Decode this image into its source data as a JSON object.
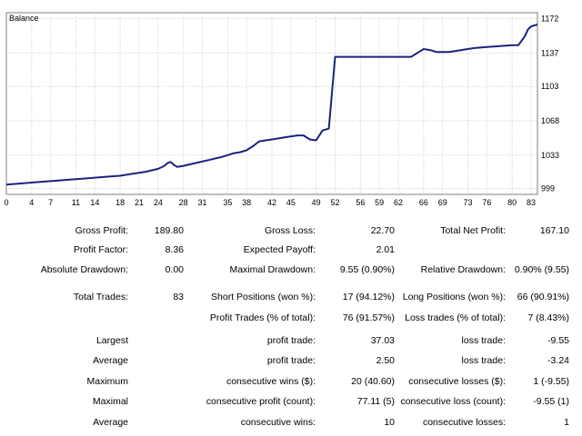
{
  "chart_data": {
    "type": "line",
    "title": "Balance",
    "x_ticks": [
      "0",
      "4",
      "7",
      "11",
      "14",
      "18",
      "21",
      "24",
      "28",
      "31",
      "35",
      "38",
      "42",
      "45",
      "49",
      "52",
      "56",
      "59",
      "62",
      "66",
      "69",
      "73",
      "76",
      "80",
      "83"
    ],
    "y_ticks": [
      "1172",
      "1137",
      "1103",
      "1068",
      "1033",
      "999"
    ],
    "xlim": [
      0,
      84
    ],
    "ylim": [
      993,
      1178
    ],
    "grid": true,
    "series": [
      {
        "color": "#1a237e",
        "x": [
          0,
          2,
          4,
          6,
          8,
          10,
          12,
          14,
          16,
          18,
          20,
          21,
          22,
          24,
          25,
          25.5,
          26,
          26.5,
          27,
          28,
          30,
          32,
          34,
          35,
          36,
          37,
          38,
          39,
          40,
          42,
          44,
          46,
          47,
          48,
          49,
          50,
          51,
          52,
          54,
          56,
          58,
          60,
          62,
          63,
          64,
          65,
          66,
          67,
          68,
          70,
          72,
          74,
          76,
          78,
          80,
          81,
          82,
          82.5,
          83,
          84
        ],
        "y": [
          1003,
          1004,
          1005,
          1006,
          1007,
          1008,
          1009,
          1010,
          1011,
          1012,
          1014,
          1015,
          1016,
          1019,
          1022,
          1025,
          1026,
          1023,
          1021,
          1022,
          1025,
          1028,
          1031,
          1033,
          1035,
          1036,
          1038,
          1042,
          1047,
          1049,
          1051,
          1053,
          1053,
          1049,
          1048,
          1058,
          1060,
          1133,
          1133,
          1133,
          1133,
          1133,
          1133,
          1133,
          1133,
          1137,
          1141,
          1140,
          1138,
          1138,
          1140,
          1142,
          1143,
          1144,
          1145,
          1145,
          1154,
          1161,
          1164,
          1166
        ]
      }
    ]
  },
  "stats": {
    "gross_profit": {
      "label": "Gross Profit:",
      "value": "189.80"
    },
    "gross_loss": {
      "label": "Gross Loss:",
      "value": "22.70"
    },
    "total_net_profit": {
      "label": "Total Net Profit:",
      "value": "167.10"
    },
    "profit_factor": {
      "label": "Profit Factor:",
      "value": "8.36"
    },
    "expected_payoff": {
      "label": "Expected Payoff:",
      "value": "2.01"
    },
    "absolute_drawdown": {
      "label": "Absolute Drawdown:",
      "value": "0.00"
    },
    "maximal_drawdown": {
      "label": "Maximal Drawdown:",
      "value": "9.55 (0.90%)"
    },
    "relative_drawdown": {
      "label": "Relative Drawdown:",
      "value": "0.90% (9.55)"
    },
    "total_trades": {
      "label": "Total Trades:",
      "value": "83"
    },
    "short_positions": {
      "label": "Short Positions (won %):",
      "value": "17 (94.12%)"
    },
    "long_positions": {
      "label": "Long Positions (won %):",
      "value": "66 (90.91%)"
    },
    "profit_trades": {
      "label": "Profit Trades (% of total):",
      "value": "76 (91.57%)"
    },
    "loss_trades": {
      "label": "Loss trades (% of total):",
      "value": "7 (8.43%)"
    },
    "largest": {
      "label": "Largest",
      "profit_label": "profit trade:",
      "profit_value": "37.03",
      "loss_label": "loss trade:",
      "loss_value": "-9.55"
    },
    "average": {
      "label": "Average",
      "profit_label": "profit trade:",
      "profit_value": "2.50",
      "loss_label": "loss trade:",
      "loss_value": "-3.24"
    },
    "maximum": {
      "label": "Maximum",
      "profit_label": "consecutive wins ($):",
      "profit_value": "20 (40.60)",
      "loss_label": "consecutive losses ($):",
      "loss_value": "1 (-9.55)"
    },
    "maximal": {
      "label": "Maximal",
      "profit_label": "consecutive profit (count):",
      "profit_value": "77.11 (5)",
      "loss_label": "consecutive loss (count):",
      "loss_value": "-9.55 (1)"
    },
    "average_consec": {
      "label": "Average",
      "profit_label": "consecutive wins:",
      "profit_value": "10",
      "loss_label": "consecutive losses:",
      "loss_value": "1"
    }
  }
}
